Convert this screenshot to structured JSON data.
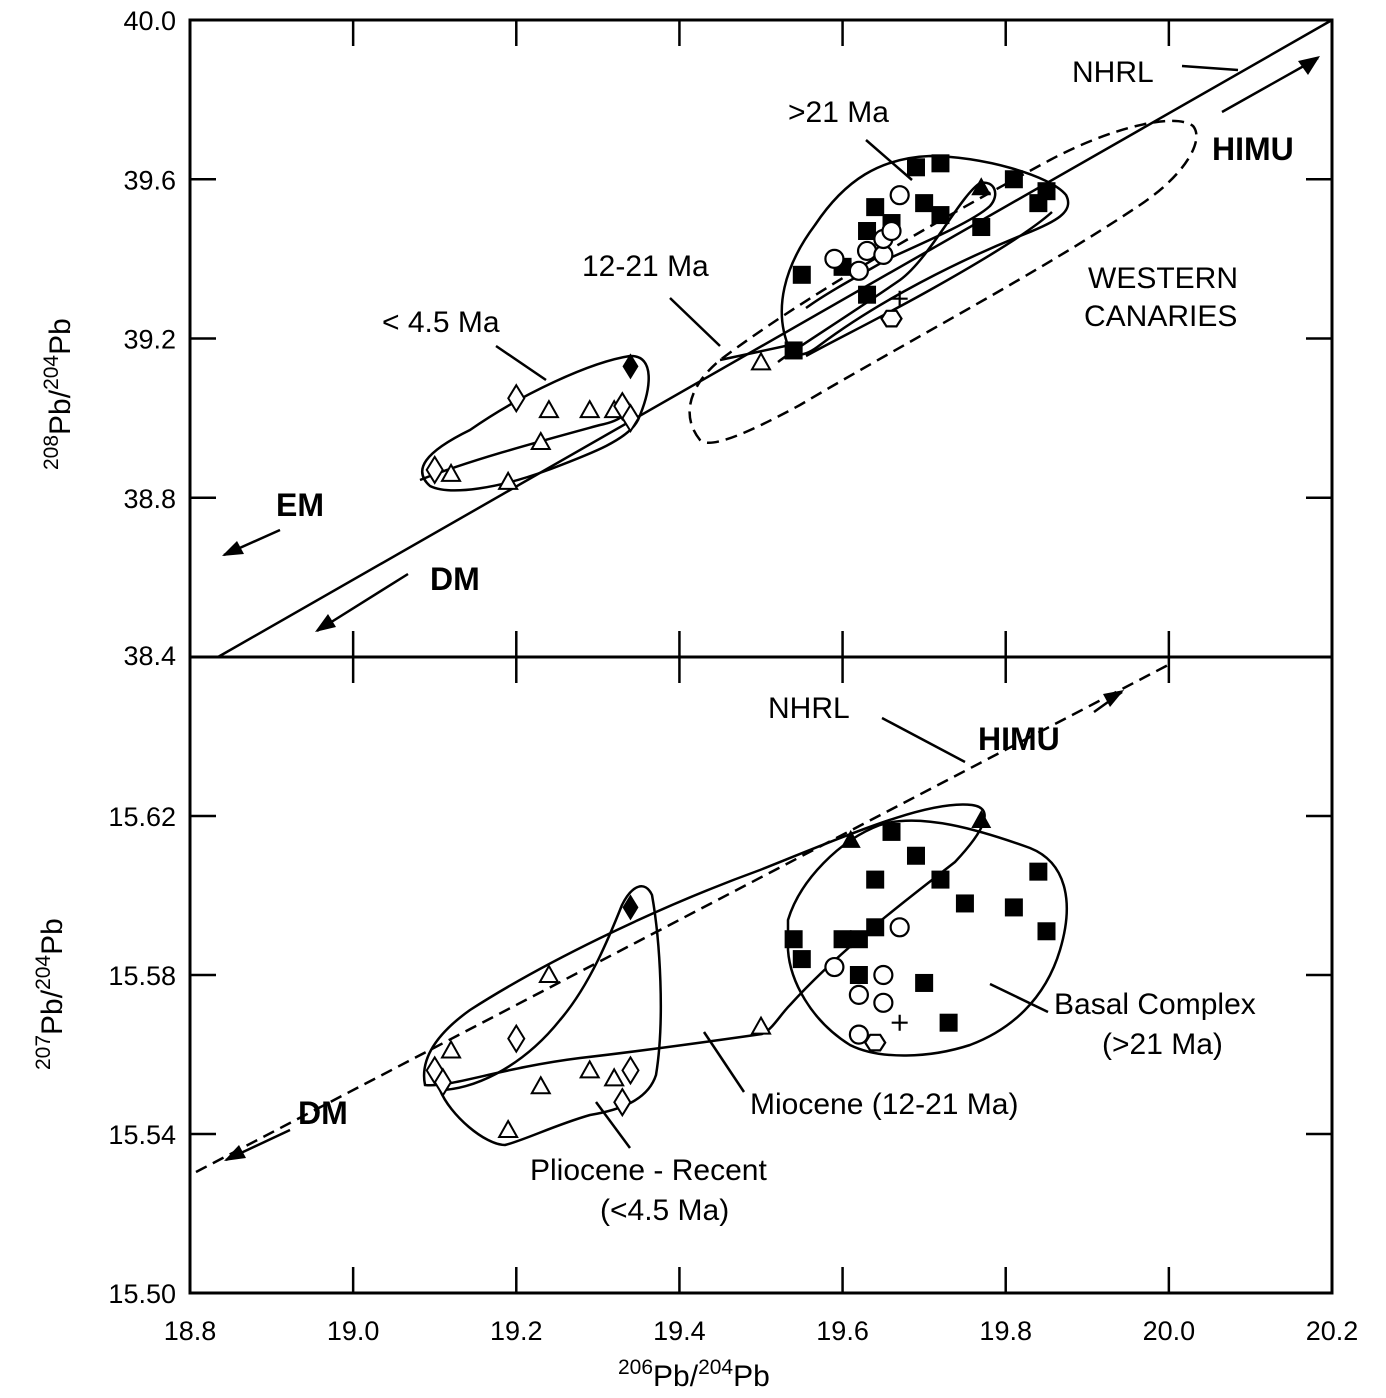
{
  "chart_data": [
    {
      "type": "scatter",
      "xlabel": {
        "pre": "206",
        "pb1": "Pb/",
        "sup2": "204",
        "pb2": "Pb"
      },
      "ylabel": {
        "pre": "208",
        "pb1": "Pb/",
        "sup2": "204",
        "pb2": "Pb"
      },
      "xlim": [
        18.8,
        20.2
      ],
      "ylim": [
        38.4,
        40.0
      ],
      "yticks": [
        "38.4",
        "38.8",
        "39.2",
        "39.6",
        "40.0"
      ],
      "annotations": {
        "nhrl": "NHRL",
        "ma21": ">21 Ma",
        "ma12": "12-21 Ma",
        "ma45": "< 4.5 Ma",
        "western1": "WESTERN",
        "western2": "CANARIES",
        "himu": "HIMU",
        "em": "EM",
        "dm": "DM"
      },
      "series": [
        {
          "marker": "filled-square",
          "points": [
            [
              19.55,
              39.36
            ],
            [
              19.54,
              39.17
            ],
            [
              19.63,
              39.31
            ],
            [
              19.63,
              39.47
            ],
            [
              19.64,
              39.53
            ],
            [
              19.66,
              39.49
            ],
            [
              19.69,
              39.63
            ],
            [
              19.72,
              39.64
            ],
            [
              19.7,
              39.54
            ],
            [
              19.72,
              39.51
            ],
            [
              19.77,
              39.48
            ],
            [
              19.81,
              39.6
            ],
            [
              19.84,
              39.54
            ],
            [
              19.85,
              39.57
            ],
            [
              19.6,
              39.38
            ]
          ]
        },
        {
          "marker": "open-circle",
          "points": [
            [
              19.67,
              39.56
            ],
            [
              19.59,
              39.4
            ],
            [
              19.62,
              39.37
            ],
            [
              19.63,
              39.42
            ],
            [
              19.65,
              39.41
            ],
            [
              19.65,
              39.45
            ],
            [
              19.66,
              39.47
            ]
          ]
        },
        {
          "marker": "open-hexagon",
          "points": [
            [
              19.66,
              39.25
            ]
          ]
        },
        {
          "marker": "plus",
          "points": [
            [
              19.67,
              39.3
            ]
          ]
        },
        {
          "marker": "open-triangle",
          "points": [
            [
              19.12,
              38.86
            ],
            [
              19.19,
              38.84
            ],
            [
              19.23,
              38.94
            ],
            [
              19.24,
              39.02
            ],
            [
              19.29,
              39.02
            ],
            [
              19.32,
              39.02
            ],
            [
              19.5,
              39.14
            ]
          ]
        },
        {
          "marker": "filled-triangle",
          "points": [
            [
              19.77,
              39.58
            ]
          ]
        },
        {
          "marker": "open-diamond",
          "points": [
            [
              19.1,
              38.87
            ],
            [
              19.2,
              39.05
            ],
            [
              19.33,
              39.03
            ],
            [
              19.34,
              39.0
            ]
          ]
        },
        {
          "marker": "filled-diamond",
          "points": [
            [
              19.34,
              39.13
            ]
          ]
        }
      ]
    },
    {
      "type": "scatter",
      "xlabel": "",
      "ylabel": {
        "pre": "207",
        "pb1": "Pb/",
        "sup2": "204",
        "pb2": "Pb"
      },
      "xlim": [
        18.8,
        20.2
      ],
      "ylim": [
        15.5,
        15.66
      ],
      "xticks": [
        "18.8",
        "19.0",
        "19.2",
        "19.4",
        "19.6",
        "19.8",
        "20.0",
        "20.2"
      ],
      "yticks": [
        "15.50",
        "15.54",
        "15.58",
        "15.62"
      ],
      "annotations": {
        "nhrl": "NHRL",
        "himu": "HIMU",
        "dm": "DM",
        "basal1": "Basal Complex",
        "basal2": "(>21 Ma)",
        "miocene": "Miocene (12-21 Ma)",
        "plio1": "Pliocene - Recent",
        "plio2": "(<4.5 Ma)"
      },
      "series": [
        {
          "marker": "filled-square",
          "points": [
            [
              19.54,
              15.589
            ],
            [
              19.55,
              15.584
            ],
            [
              19.6,
              15.589
            ],
            [
              19.62,
              15.589
            ],
            [
              19.64,
              15.592
            ],
            [
              19.64,
              15.604
            ],
            [
              19.66,
              15.616
            ],
            [
              19.69,
              15.61
            ],
            [
              19.72,
              15.604
            ],
            [
              19.75,
              15.598
            ],
            [
              19.81,
              15.597
            ],
            [
              19.84,
              15.606
            ],
            [
              19.85,
              15.591
            ],
            [
              19.7,
              15.578
            ],
            [
              19.73,
              15.568
            ],
            [
              19.62,
              15.58
            ]
          ]
        },
        {
          "marker": "open-circle",
          "points": [
            [
              19.67,
              15.592
            ],
            [
              19.59,
              15.582
            ],
            [
              19.65,
              15.58
            ],
            [
              19.62,
              15.575
            ],
            [
              19.65,
              15.573
            ],
            [
              19.62,
              15.565
            ]
          ]
        },
        {
          "marker": "open-hexagon",
          "points": [
            [
              19.64,
              15.563
            ]
          ]
        },
        {
          "marker": "plus",
          "points": [
            [
              19.67,
              15.568
            ]
          ]
        },
        {
          "marker": "open-triangle",
          "points": [
            [
              19.12,
              15.561
            ],
            [
              19.24,
              15.58
            ],
            [
              19.23,
              15.552
            ],
            [
              19.29,
              15.556
            ],
            [
              19.32,
              15.554
            ],
            [
              19.19,
              15.541
            ],
            [
              19.5,
              15.567
            ]
          ]
        },
        {
          "marker": "filled-triangle",
          "points": [
            [
              19.61,
              15.614
            ],
            [
              19.77,
              15.619
            ]
          ]
        },
        {
          "marker": "open-diamond",
          "points": [
            [
              19.1,
              15.556
            ],
            [
              19.11,
              15.553
            ],
            [
              19.2,
              15.564
            ],
            [
              19.33,
              15.548
            ],
            [
              19.34,
              15.556
            ]
          ]
        },
        {
          "marker": "filled-diamond",
          "points": [
            [
              19.34,
              15.597
            ]
          ]
        }
      ]
    }
  ]
}
